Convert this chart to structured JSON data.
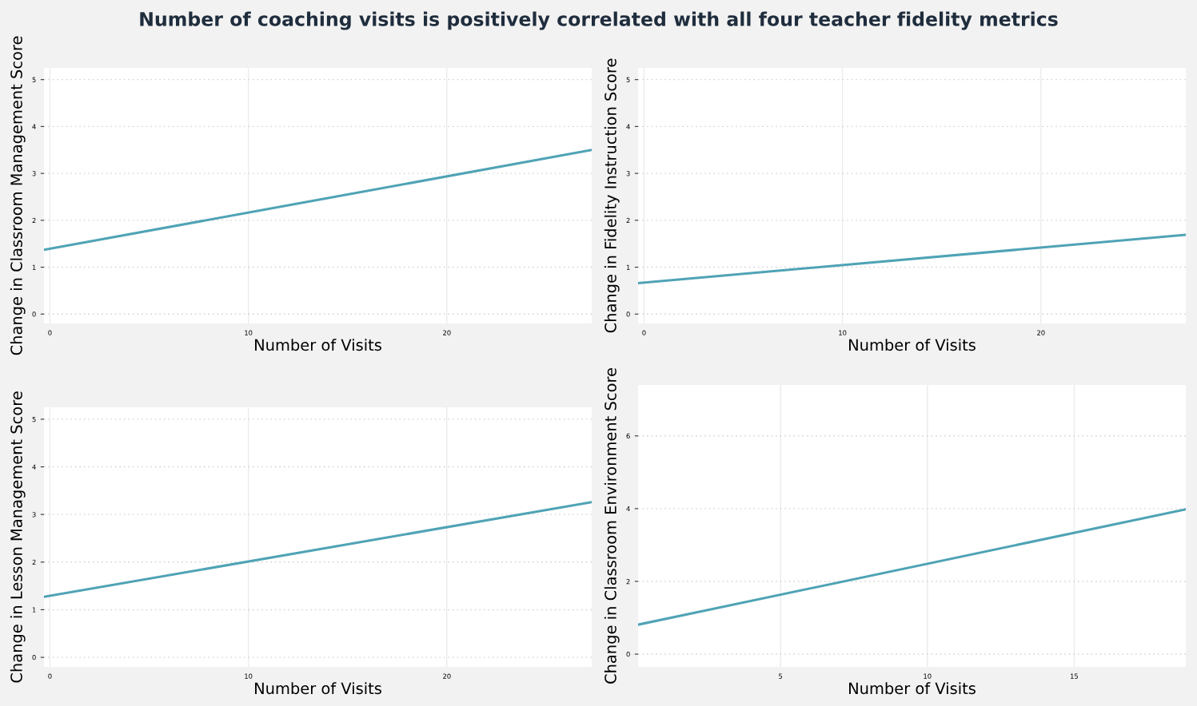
{
  "chart_data": [
    {
      "type": "line",
      "title": "Number of coaching visits is positively correlated with all four teacher fidelity metrics",
      "xlabel": "Number of Visits",
      "ylabel": "Change in Classroom Management Score",
      "xlim": [
        -0.3,
        27.3
      ],
      "xticks": [
        0,
        10,
        20
      ],
      "ylim": [
        -0.2,
        5.25
      ],
      "yticks": [
        0,
        1,
        2,
        3,
        4,
        5
      ],
      "grid": true,
      "series": [
        {
          "color": "#4fa3b5",
          "x": [
            -0.3,
            27.3
          ],
          "values": [
            1.37,
            3.5
          ]
        }
      ]
    },
    {
      "type": "line",
      "xlabel": "Number of Visits",
      "ylabel": "Change in Fidelity Instruction Score",
      "xlim": [
        -0.3,
        27.3
      ],
      "xticks": [
        0,
        10,
        20
      ],
      "ylim": [
        -0.2,
        5.25
      ],
      "yticks": [
        0,
        1,
        2,
        3,
        4,
        5
      ],
      "grid": true,
      "series": [
        {
          "color": "#4fa3b5",
          "x": [
            -0.3,
            27.3
          ],
          "values": [
            0.66,
            1.69
          ]
        }
      ]
    },
    {
      "type": "line",
      "xlabel": "Number of Visits",
      "ylabel": "Change in Lesson Management Score",
      "xlim": [
        -0.3,
        27.3
      ],
      "xticks": [
        0,
        10,
        20
      ],
      "ylim": [
        -0.2,
        5.25
      ],
      "yticks": [
        0,
        1,
        2,
        3,
        4,
        5
      ],
      "grid": true,
      "series": [
        {
          "color": "#4fa3b5",
          "x": [
            -0.3,
            27.3
          ],
          "values": [
            1.27,
            3.26
          ]
        }
      ]
    },
    {
      "type": "line",
      "xlabel": "Number of Visits",
      "ylabel": "Change in Classroom Environment Score",
      "xlim": [
        0.15,
        18.8
      ],
      "xticks": [
        5,
        10,
        15
      ],
      "ylim": [
        -0.35,
        7.4
      ],
      "yticks": [
        0,
        2,
        4,
        6
      ],
      "grid": true,
      "series": [
        {
          "color": "#4fa3b5",
          "x": [
            0.15,
            18.8
          ],
          "values": [
            0.81,
            3.98
          ]
        }
      ]
    }
  ]
}
